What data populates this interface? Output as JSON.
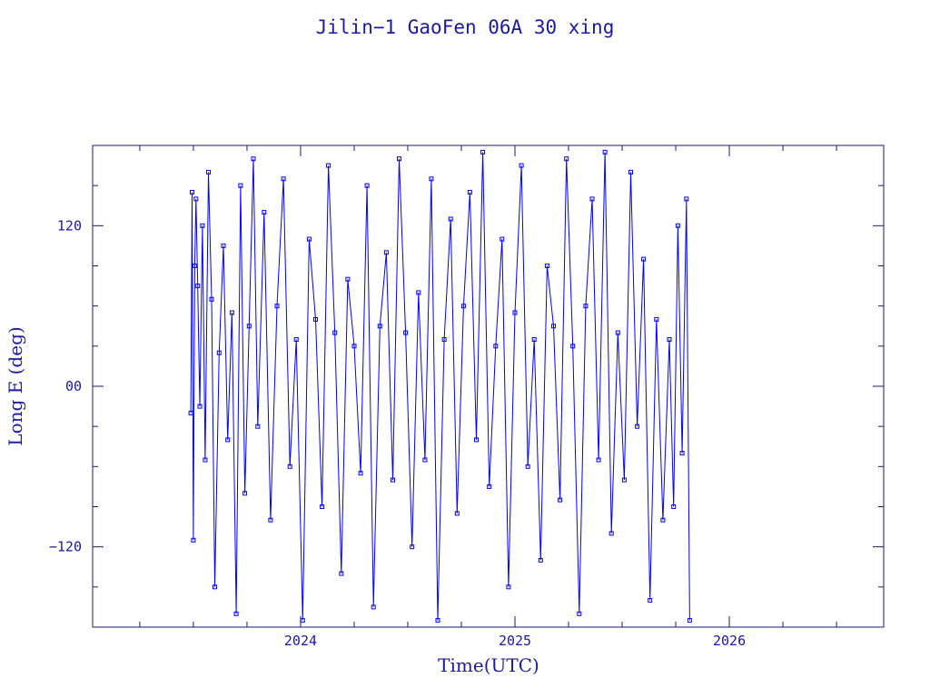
{
  "colors": {
    "frame": "#1a1a80",
    "text": "#1a1aa6",
    "data": "#0000ff"
  },
  "chart_data": {
    "type": "scatter",
    "title": "Jilin−1 GaoFen 06A 30 xing",
    "xlabel": "Time(UTC)",
    "ylabel": "Long E (deg)",
    "xlim": [
      2023.03,
      2026.72
    ],
    "ylim": [
      -180,
      180
    ],
    "x_ticks": [
      2024,
      2025,
      2026
    ],
    "x_tick_labels": [
      "2024",
      "2025",
      "2026"
    ],
    "y_ticks": [
      120,
      0,
      -120
    ],
    "y_tick_labels": [
      "120",
      "00",
      "−120"
    ],
    "grid": false,
    "marker": "open-square",
    "connect_points": true,
    "series": [
      {
        "x": [
          2023.488,
          2023.494,
          2023.5,
          2023.506,
          2023.512,
          2023.52,
          2023.53,
          2023.542,
          2023.555,
          2023.57,
          2023.585,
          2023.6,
          2023.62,
          2023.64,
          2023.66,
          2023.68,
          2023.7,
          2023.72,
          2023.74,
          2023.76,
          2023.78,
          2023.8,
          2023.83,
          2023.86,
          2023.89,
          2023.92,
          2023.95,
          2023.98,
          2024.01,
          2024.04,
          2024.07,
          2024.1,
          2024.13,
          2024.16,
          2024.19,
          2024.22,
          2024.25,
          2024.28,
          2024.31,
          2024.34,
          2024.37,
          2024.4,
          2024.43,
          2024.46,
          2024.49,
          2024.52,
          2024.55,
          2024.58,
          2024.61,
          2024.64,
          2024.67,
          2024.7,
          2024.73,
          2024.76,
          2024.79,
          2024.82,
          2024.85,
          2024.88,
          2024.91,
          2024.94,
          2024.97,
          2025.0,
          2025.03,
          2025.06,
          2025.09,
          2025.12,
          2025.15,
          2025.18,
          2025.21,
          2025.24,
          2025.27,
          2025.3,
          2025.33,
          2025.36,
          2025.39,
          2025.42,
          2025.45,
          2025.48,
          2025.51,
          2025.54,
          2025.57,
          2025.6,
          2025.63,
          2025.66,
          2025.69,
          2025.72,
          2025.74,
          2025.76,
          2025.78,
          2025.8,
          2025.815
        ],
        "y": [
          -20,
          145,
          -115,
          90,
          140,
          75,
          -15,
          120,
          -55,
          160,
          65,
          -150,
          25,
          105,
          -40,
          55,
          -170,
          150,
          -80,
          45,
          170,
          -30,
          130,
          -100,
          60,
          155,
          -60,
          35,
          -175,
          110,
          50,
          -90,
          165,
          40,
          -140,
          80,
          30,
          -65,
          150,
          -165,
          45,
          100,
          -70,
          170,
          40,
          -120,
          70,
          -55,
          155,
          -175,
          35,
          125,
          -95,
          60,
          145,
          -40,
          175,
          -75,
          30,
          110,
          -150,
          55,
          165,
          -60,
          35,
          -130,
          90,
          45,
          -85,
          170,
          30,
          -170,
          60,
          140,
          -55,
          175,
          -110,
          40,
          -70,
          160,
          -30,
          95,
          -160,
          50,
          -100,
          35,
          -90,
          120,
          -50,
          140,
          -175
        ]
      }
    ]
  }
}
